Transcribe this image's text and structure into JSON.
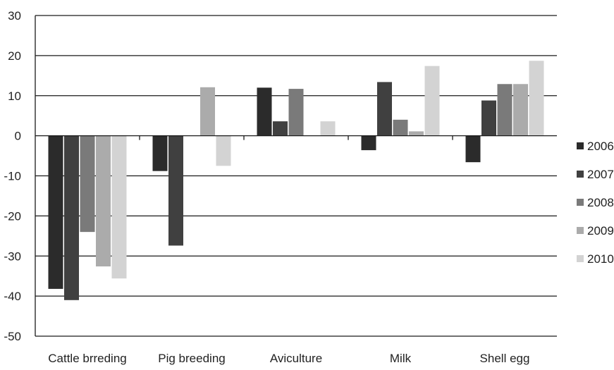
{
  "chart_data": {
    "type": "bar",
    "categories": [
      "Cattle brreding",
      "Pig breeding",
      "Aviculture",
      "Milk",
      "Shell egg"
    ],
    "series": [
      {
        "name": "2006",
        "color": "#2b2b2b",
        "values": [
          -38.2,
          -8.8,
          12.0,
          -3.6,
          -6.6
        ]
      },
      {
        "name": "2007",
        "color": "#404040",
        "values": [
          -41.0,
          -27.4,
          3.6,
          13.4,
          8.8
        ]
      },
      {
        "name": "2008",
        "color": "#7a7a7a",
        "values": [
          -24.0,
          0,
          11.7,
          4.0,
          12.9
        ]
      },
      {
        "name": "2009",
        "color": "#ababab",
        "values": [
          -32.6,
          12.1,
          0,
          1.1,
          12.9
        ]
      },
      {
        "name": "2010",
        "color": "#d3d3d3",
        "values": [
          -35.6,
          -7.5,
          3.6,
          17.4,
          18.7
        ]
      }
    ],
    "ylim": [
      -50,
      30
    ],
    "yticks": [
      "30",
      "20",
      "10",
      "0",
      "-10",
      "-20",
      "-30",
      "-40",
      "-50"
    ],
    "grid": true,
    "legend_position": "right",
    "title": "",
    "xlabel": "",
    "ylabel": ""
  }
}
